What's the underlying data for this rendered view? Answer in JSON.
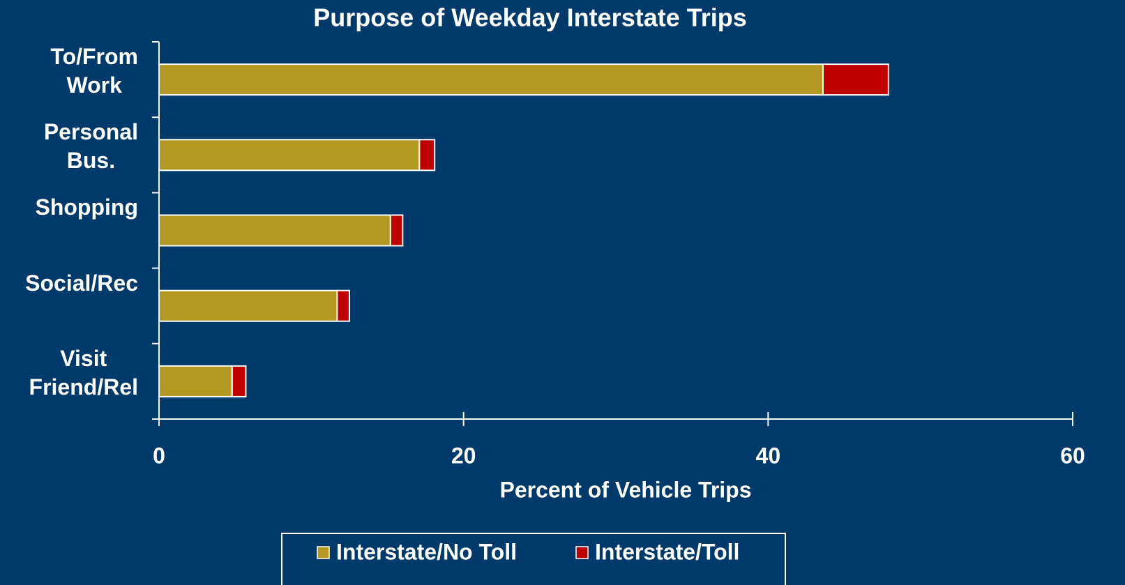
{
  "chart_data": {
    "type": "bar",
    "orientation": "horizontal",
    "stacked": true,
    "title": "Purpose of Weekday Interstate Trips",
    "x_label": "Percent of Vehicle Trips",
    "categories": [
      "To/From\nWork",
      "Personal\nBus.",
      "Shopping",
      "Social/Rec",
      "Visit\nFriend/Rel"
    ],
    "series": [
      {
        "name": "Interstate/No Toll",
        "color": "#b39822",
        "values": [
          43.6,
          17.1,
          15.2,
          11.7,
          4.8
        ]
      },
      {
        "name": "Interstate/Toll",
        "color": "#c00000",
        "values": [
          4.3,
          1.0,
          0.8,
          0.8,
          0.9
        ]
      }
    ],
    "xlim": [
      0,
      60
    ],
    "xticks": [
      0,
      20,
      40,
      60
    ],
    "grid": false,
    "legend": "bottom"
  }
}
